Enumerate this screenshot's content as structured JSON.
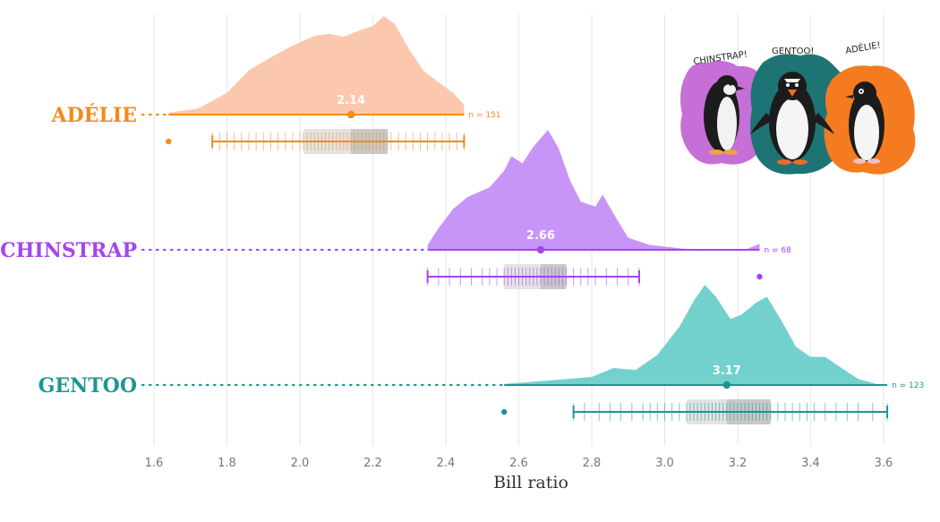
{
  "chart_data": {
    "type": "raincloud",
    "xlabel": "Bill ratio",
    "xlim": [
      1.55,
      3.65
    ],
    "xticks": [
      1.6,
      1.8,
      2.0,
      2.2,
      2.4,
      2.6,
      2.8,
      3.0,
      3.2,
      3.4,
      3.6
    ],
    "grid": "vertical",
    "series": [
      {
        "name": "ADÉLIE",
        "color": "#f28c1a",
        "fill": "#fcc8ad",
        "mean": 2.14,
        "mean_label": "2.14",
        "n": 151,
        "n_label": "n = 151",
        "min": 1.64,
        "max": 2.45,
        "whisker_low": 1.76,
        "q1": 2.01,
        "median": 2.14,
        "q3": 2.24,
        "outliers": [
          1.64
        ],
        "density": [
          [
            1.64,
            0.02
          ],
          [
            1.72,
            0.06
          ],
          [
            1.8,
            0.22
          ],
          [
            1.86,
            0.45
          ],
          [
            1.92,
            0.58
          ],
          [
            1.98,
            0.7
          ],
          [
            2.04,
            0.8
          ],
          [
            2.08,
            0.82
          ],
          [
            2.12,
            0.79
          ],
          [
            2.16,
            0.85
          ],
          [
            2.2,
            0.9
          ],
          [
            2.23,
            1.0
          ],
          [
            2.26,
            0.92
          ],
          [
            2.3,
            0.66
          ],
          [
            2.34,
            0.44
          ],
          [
            2.38,
            0.33
          ],
          [
            2.42,
            0.22
          ],
          [
            2.45,
            0.1
          ]
        ],
        "observations": [
          1.76,
          1.78,
          1.8,
          1.82,
          1.84,
          1.86,
          1.88,
          1.9,
          1.92,
          1.94,
          1.96,
          1.98,
          2.0,
          2.01,
          2.02,
          2.03,
          2.04,
          2.05,
          2.06,
          2.07,
          2.08,
          2.09,
          2.1,
          2.11,
          2.12,
          2.13,
          2.14,
          2.15,
          2.16,
          2.17,
          2.18,
          2.19,
          2.2,
          2.21,
          2.22,
          2.23,
          2.24,
          2.25,
          2.27,
          2.29,
          2.31,
          2.33,
          2.35,
          2.37,
          2.39,
          2.41,
          2.43,
          2.45
        ]
      },
      {
        "name": "CHINSTRAP",
        "color": "#a445ee",
        "fill": "#c794f7",
        "mean": 2.66,
        "mean_label": "2.66",
        "n": 68,
        "n_label": "n = 68",
        "min": 2.35,
        "max": 3.26,
        "whisker_low": 2.35,
        "q1": 2.56,
        "median": 2.66,
        "q3": 2.73,
        "outliers": [
          3.26
        ],
        "density": [
          [
            2.35,
            0.04
          ],
          [
            2.38,
            0.18
          ],
          [
            2.42,
            0.34
          ],
          [
            2.46,
            0.44
          ],
          [
            2.52,
            0.52
          ],
          [
            2.56,
            0.66
          ],
          [
            2.58,
            0.78
          ],
          [
            2.61,
            0.72
          ],
          [
            2.64,
            0.86
          ],
          [
            2.68,
            1.0
          ],
          [
            2.71,
            0.84
          ],
          [
            2.74,
            0.58
          ],
          [
            2.77,
            0.4
          ],
          [
            2.81,
            0.36
          ],
          [
            2.83,
            0.46
          ],
          [
            2.86,
            0.3
          ],
          [
            2.9,
            0.1
          ],
          [
            2.96,
            0.04
          ],
          [
            3.05,
            0.01
          ],
          [
            3.22,
            0.0
          ],
          [
            3.26,
            0.05
          ]
        ],
        "observations": [
          2.35,
          2.38,
          2.41,
          2.44,
          2.47,
          2.5,
          2.52,
          2.54,
          2.56,
          2.57,
          2.58,
          2.59,
          2.6,
          2.61,
          2.62,
          2.63,
          2.64,
          2.65,
          2.66,
          2.67,
          2.68,
          2.69,
          2.7,
          2.71,
          2.72,
          2.73,
          2.75,
          2.77,
          2.79,
          2.81,
          2.84,
          2.87,
          2.9,
          2.93
        ]
      },
      {
        "name": "GENTOO",
        "color": "#1f9595",
        "fill": "#72d1cc",
        "mean": 3.17,
        "mean_label": "3.17",
        "n": 123,
        "n_label": "n = 123",
        "min": 2.56,
        "max": 3.61,
        "whisker_low": 2.75,
        "q1": 3.06,
        "median": 3.17,
        "q3": 3.29,
        "outliers": [
          2.56
        ],
        "density": [
          [
            2.56,
            0.01
          ],
          [
            2.7,
            0.05
          ],
          [
            2.8,
            0.08
          ],
          [
            2.86,
            0.17
          ],
          [
            2.92,
            0.15
          ],
          [
            2.98,
            0.3
          ],
          [
            3.04,
            0.58
          ],
          [
            3.08,
            0.84
          ],
          [
            3.11,
            1.0
          ],
          [
            3.14,
            0.88
          ],
          [
            3.18,
            0.66
          ],
          [
            3.21,
            0.7
          ],
          [
            3.25,
            0.82
          ],
          [
            3.28,
            0.88
          ],
          [
            3.32,
            0.64
          ],
          [
            3.36,
            0.38
          ],
          [
            3.4,
            0.28
          ],
          [
            3.44,
            0.28
          ],
          [
            3.48,
            0.18
          ],
          [
            3.53,
            0.06
          ],
          [
            3.58,
            0.01
          ]
        ],
        "observations": [
          2.75,
          2.78,
          2.82,
          2.85,
          2.88,
          2.91,
          2.94,
          2.96,
          2.98,
          3.0,
          3.02,
          3.04,
          3.06,
          3.07,
          3.08,
          3.09,
          3.1,
          3.11,
          3.12,
          3.13,
          3.14,
          3.15,
          3.16,
          3.17,
          3.18,
          3.19,
          3.2,
          3.21,
          3.22,
          3.23,
          3.24,
          3.25,
          3.26,
          3.27,
          3.28,
          3.29,
          3.31,
          3.33,
          3.35,
          3.37,
          3.39,
          3.41,
          3.44,
          3.47,
          3.5,
          3.53,
          3.57,
          3.61
        ]
      }
    ]
  },
  "artwork": {
    "labels": [
      "CHINSTRAP!",
      "GENTOO!",
      "ADÉLIE!"
    ],
    "colors": [
      "#c66fd6",
      "#1e7474",
      "#f47b20"
    ]
  }
}
